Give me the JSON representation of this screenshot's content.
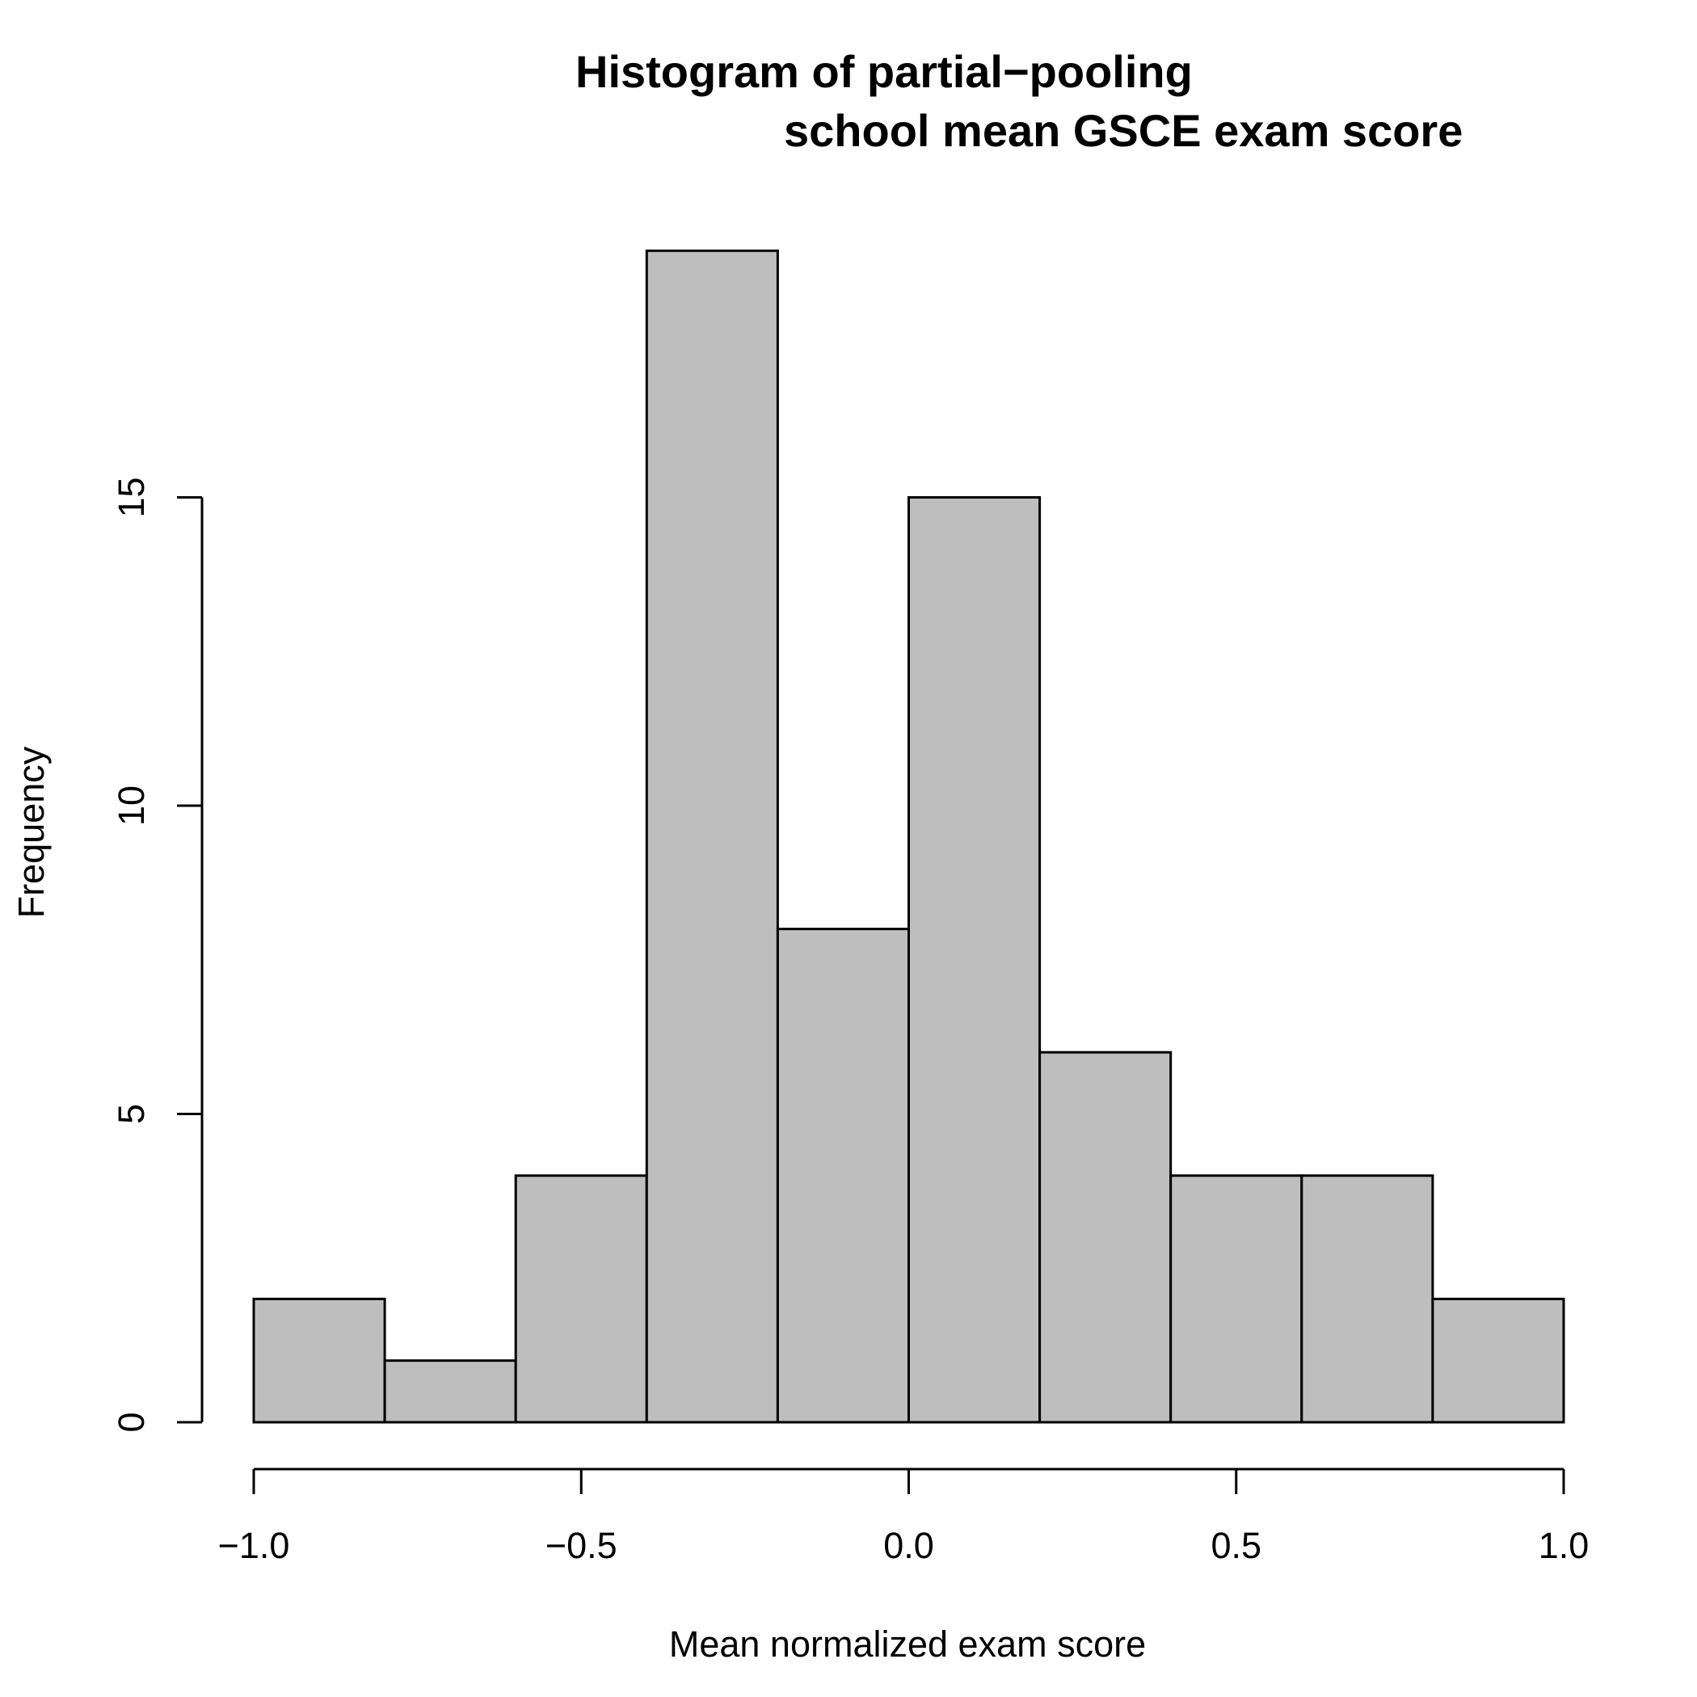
{
  "chart_data": {
    "type": "histogram",
    "title_line1": "Histogram of partial−pooling",
    "title_line2": "school mean GSCE exam score",
    "xlabel": "Mean normalized exam score",
    "ylabel": "Frequency",
    "xlim": [
      -1.0,
      1.0
    ],
    "ylim": [
      0,
      19
    ],
    "bins": [
      {
        "start": -1.0,
        "end": -0.8,
        "count": 2
      },
      {
        "start": -0.8,
        "end": -0.6,
        "count": 1
      },
      {
        "start": -0.6,
        "end": -0.4,
        "count": 4
      },
      {
        "start": -0.4,
        "end": -0.2,
        "count": 19
      },
      {
        "start": -0.2,
        "end": 0.0,
        "count": 8
      },
      {
        "start": 0.0,
        "end": 0.2,
        "count": 15
      },
      {
        "start": 0.2,
        "end": 0.4,
        "count": 6
      },
      {
        "start": 0.4,
        "end": 0.6,
        "count": 4
      },
      {
        "start": 0.6,
        "end": 0.8,
        "count": 4
      },
      {
        "start": 0.8,
        "end": 1.0,
        "count": 2
      }
    ],
    "x_ticks": [
      {
        "value": -1.0,
        "label": "−1.0"
      },
      {
        "value": -0.5,
        "label": "−0.5"
      },
      {
        "value": 0.0,
        "label": "0.0"
      },
      {
        "value": 0.5,
        "label": "0.5"
      },
      {
        "value": 1.0,
        "label": "1.0"
      }
    ],
    "y_ticks": [
      {
        "value": 0,
        "label": "0"
      },
      {
        "value": 5,
        "label": "5"
      },
      {
        "value": 10,
        "label": "10"
      },
      {
        "value": 15,
        "label": "15"
      }
    ],
    "bar_color": "#bebebe",
    "grid": false
  }
}
